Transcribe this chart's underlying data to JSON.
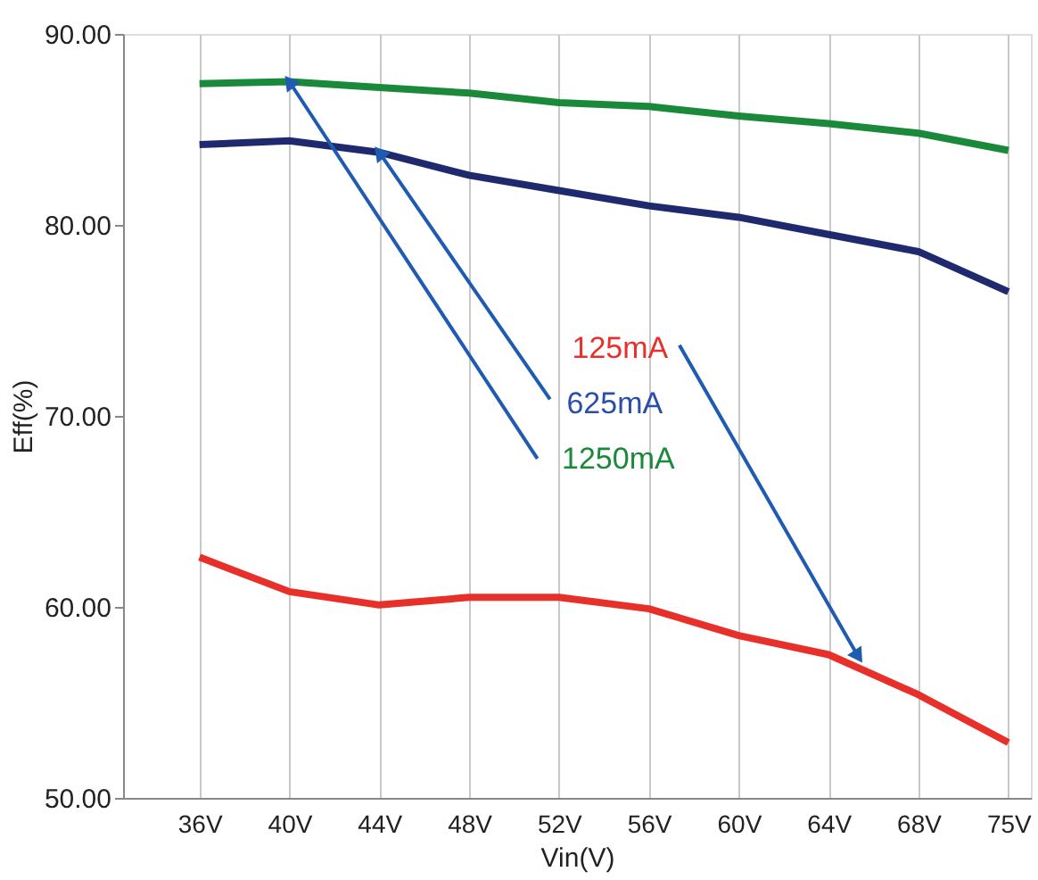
{
  "chart_data": {
    "type": "line",
    "xlabel": "Vin(V)",
    "ylabel": "Eff(%)",
    "categories": [
      "36V",
      "40V",
      "44V",
      "48V",
      "52V",
      "56V",
      "60V",
      "64V",
      "68V",
      "75V"
    ],
    "series": [
      {
        "color": "#1a8a3a",
        "values": [
          87.4,
          87.5,
          87.2,
          86.9,
          86.4,
          86.2,
          85.7,
          85.3,
          84.8,
          83.9
        ]
      },
      {
        "color": "#1f2a6e",
        "values": [
          84.2,
          84.4,
          83.8,
          82.6,
          81.8,
          81.0,
          80.4,
          79.5,
          78.6,
          76.5
        ]
      },
      {
        "color": "#e8302a",
        "values": [
          62.6,
          60.8,
          60.1,
          60.5,
          60.5,
          59.9,
          58.5,
          57.5,
          55.4,
          52.9
        ]
      }
    ],
    "ylim": [
      50,
      90
    ],
    "yticks": [
      {
        "value": 50,
        "label": "50.00"
      },
      {
        "value": 60,
        "label": "60.00"
      },
      {
        "value": 70,
        "label": "70.00"
      },
      {
        "value": 80,
        "label": "80.00"
      },
      {
        "value": 90,
        "label": "90.00"
      }
    ],
    "grid": "x",
    "marker": "none",
    "line_style": "solid",
    "annotations": [
      "125mA",
      {
        "text": "625mA",
        "x": "44V",
        "y": 83.8
      },
      {
        "text": "1250mA",
        "x": "40V",
        "y": 87.5
      }
    ]
  }
}
